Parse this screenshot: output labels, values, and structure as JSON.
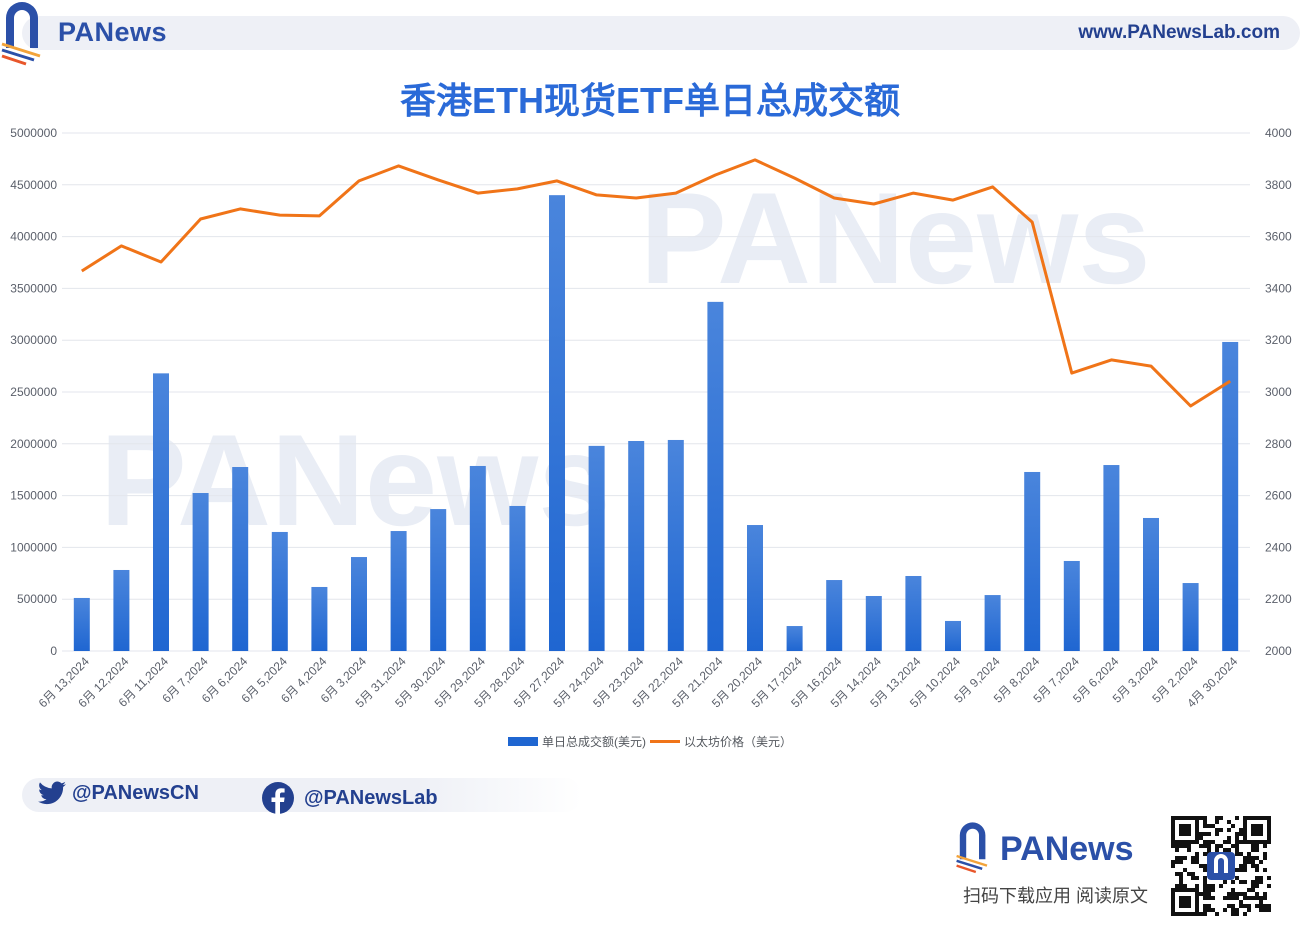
{
  "header": {
    "brand": "PANews",
    "website": "www.PANewsLab.com"
  },
  "title": "香港ETH现货ETF单日总成交额",
  "legend": {
    "bar_label": "单日总成交额(美元)",
    "line_label": "以太坊价格（美元）"
  },
  "colors": {
    "bar": "#1f66d1",
    "line": "#f07418",
    "title": "#2a6ad8",
    "brand": "#2b50a8"
  },
  "social": {
    "twitter": "@PANewsCN",
    "facebook": "@PANewsLab"
  },
  "footer": {
    "brand": "PANews",
    "tagline": "扫码下载应用  阅读原文"
  },
  "chart_data": {
    "type": "bar",
    "title": "香港ETH现货ETF单日总成交额",
    "xlabel": "",
    "ylabel": "",
    "legend_position": "bottom",
    "grid": true,
    "categories": [
      "6月 13,2024",
      "6月 12,2024",
      "6月 11,2024",
      "6月 7,2024",
      "6月 6,2024",
      "6月 5,2024",
      "6月 4,2024",
      "6月 3,2024",
      "5月 31,2024",
      "5月 30,2024",
      "5月 29,2024",
      "5月 28,2024",
      "5月 27,2024",
      "5月 24,2024",
      "5月 23,2024",
      "5月 22,2024",
      "5月 21,2024",
      "5月 20,2024",
      "5月 17,2024",
      "5月 16,2024",
      "5月 14,2024",
      "5月 13,2024",
      "5月 10,2024",
      "5月 9,2024",
      "5月 8,2024",
      "5月 7,2024",
      "5月 6,2024",
      "5月 3,2024",
      "5月 2,2024",
      "4月 30,2024"
    ],
    "series": [
      {
        "name": "单日总成交额(美元)",
        "type": "bar",
        "axis": "left",
        "values": [
          512000,
          782000,
          2680000,
          1525000,
          1776000,
          1149000,
          618000,
          907000,
          1158000,
          1370000,
          1786000,
          1400000,
          4400000,
          1980000,
          2027000,
          2037000,
          3370000,
          1216000,
          241000,
          685000,
          531000,
          724000,
          290000,
          540000,
          1728000,
          869000,
          1795000,
          1284000,
          656000,
          2983000
        ]
      },
      {
        "name": "以太坊价格（美元）",
        "type": "line",
        "axis": "right",
        "values": [
          3467,
          3564,
          3502,
          3668,
          3707,
          3683,
          3680,
          3815,
          3873,
          3819,
          3768,
          3784,
          3815,
          3761,
          3749,
          3768,
          3838,
          3896,
          3826,
          3749,
          3726,
          3768,
          3741,
          3792,
          3656,
          3073,
          3124,
          3100,
          2946,
          3042
        ]
      }
    ],
    "y_left": {
      "ylim": [
        0,
        5000000
      ],
      "ticks": [
        "0",
        "500000",
        "1000000",
        "1500000",
        "2000000",
        "2500000",
        "3000000",
        "3500000",
        "4000000",
        "4500000",
        "5000000"
      ]
    },
    "y_right": {
      "ylim": [
        2000,
        4000
      ],
      "ticks": [
        "2000",
        "2200",
        "2400",
        "2600",
        "2800",
        "3000",
        "3200",
        "3400",
        "3600",
        "3800",
        "4000"
      ]
    }
  }
}
